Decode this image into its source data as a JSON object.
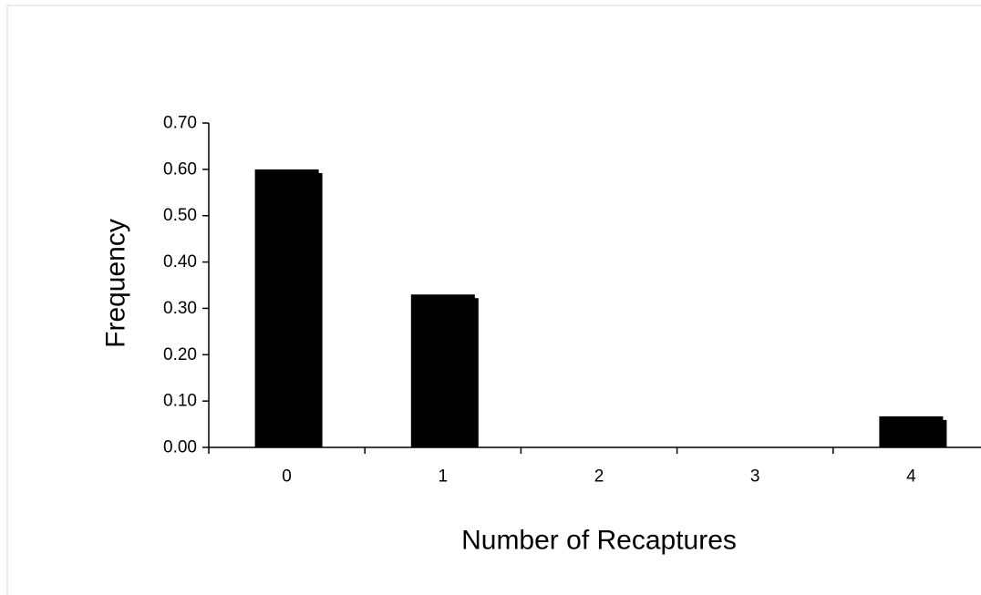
{
  "chart_data": {
    "type": "bar",
    "categories": [
      "0",
      "1",
      "2",
      "3",
      "4"
    ],
    "values": [
      0.6,
      0.33,
      0.0,
      0.0,
      0.067
    ],
    "title": "",
    "xlabel": "Number of Recaptures",
    "ylabel": "Frequency",
    "ylim": [
      0,
      0.7
    ],
    "yticks": [
      "0.00",
      "0.10",
      "0.20",
      "0.30",
      "0.40",
      "0.50",
      "0.60",
      "0.70"
    ],
    "grid": false,
    "legend": "none",
    "colors": {
      "bar": "#000000",
      "axis": "#000000",
      "frame": "#d9d9d9"
    }
  }
}
